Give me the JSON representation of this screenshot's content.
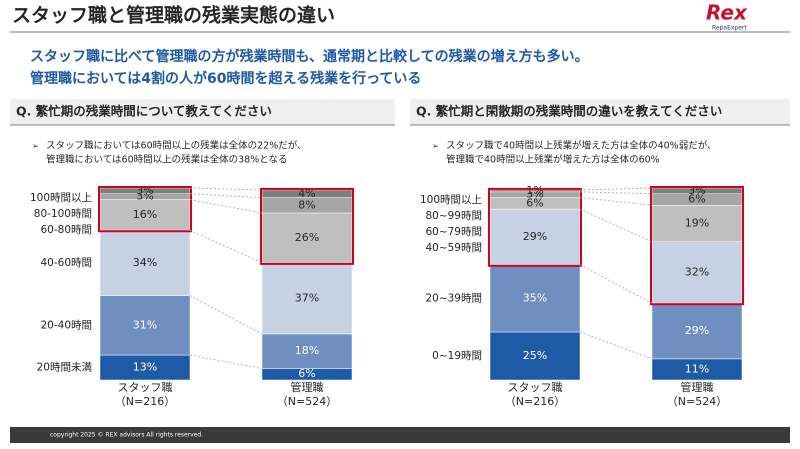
{
  "header": {
    "title": "スタッフ職と管理職の残業実態の違い",
    "logo": "Rex",
    "logo_sub": "RepaExpert"
  },
  "headline": [
    "スタッフ職に比べて管理職の方が残業時間も、通常期と比較しての残業の増え方も多い。",
    "管理職においては4割の人が60時間を超える残業を行っている"
  ],
  "footer": "copyright 2025 © REX advisors All rights reserved.",
  "chart_data": [
    {
      "type": "stacked_bar",
      "title": "Q. 繁忙期の残業時間について教えてください",
      "notes": [
        "スタッフ職においては60時間以上の残業は全体の22%だが、",
        "管理職においては60時間以上の残業は全体の38%となる"
      ],
      "categories": [
        "スタッフ職",
        "管理職"
      ],
      "category_notes": [
        "（N=216）",
        "（N=524）"
      ],
      "series": [
        {
          "name": "20時間未満",
          "color": "#1f5aa6",
          "values": [
            13,
            6
          ],
          "value_labels": [
            "13%",
            "6%"
          ]
        },
        {
          "name": "20-40時間",
          "color": "#6f8fc0",
          "values": [
            31,
            18
          ],
          "value_labels": [
            "31%",
            "18%"
          ]
        },
        {
          "name": "40-60時間",
          "color": "#c7d1e4",
          "values": [
            34,
            37
          ],
          "value_labels": [
            "34%",
            "37%"
          ]
        },
        {
          "name": "60-80時間",
          "color": "#bfbfbf",
          "values": [
            16,
            26
          ],
          "value_labels": [
            "16%",
            "26%"
          ]
        },
        {
          "name": "80-100時間",
          "color": "#a5a5a5",
          "values": [
            3,
            8
          ],
          "value_labels": [
            "3%",
            "8%"
          ]
        },
        {
          "name": "100時間以上",
          "color": "#7f7f7f",
          "values": [
            3,
            4
          ],
          "value_labels": [
            "3%",
            "4%"
          ]
        }
      ]
    },
    {
      "type": "stacked_bar",
      "title": "Q. 繁忙期と閑散期の残業時間の違いを教えてください",
      "notes": [
        "スタッフ職で40時間以上残業が増えた方は全体の40%弱だが、",
        "管理職で40時間以上残業が増えた方は全体の60%"
      ],
      "categories": [
        "スタッフ職",
        "管理職"
      ],
      "category_notes": [
        "（N=216）",
        "（N=524）"
      ],
      "series": [
        {
          "name": "0~19時間",
          "color": "#1f5aa6",
          "values": [
            25,
            11
          ],
          "value_labels": [
            "25%",
            "11%"
          ]
        },
        {
          "name": "20~39時間",
          "color": "#6f8fc0",
          "values": [
            35,
            29
          ],
          "value_labels": [
            "35%",
            "29%"
          ]
        },
        {
          "name": "40~59時間",
          "color": "#c7d1e4",
          "values": [
            29,
            32
          ],
          "value_labels": [
            "29%",
            "32%"
          ]
        },
        {
          "name": "60~79時間",
          "color": "#bfbfbf",
          "values": [
            6,
            19
          ],
          "value_labels": [
            "6%",
            "19%"
          ]
        },
        {
          "name": "80~99時間",
          "color": "#a5a5a5",
          "values": [
            3,
            6
          ],
          "value_labels": [
            "3%",
            "6%"
          ]
        },
        {
          "name": "100時間以上",
          "color": "#7f7f7f",
          "values": [
            1,
            3
          ],
          "value_labels": [
            "1%",
            "3%"
          ]
        }
      ]
    }
  ]
}
